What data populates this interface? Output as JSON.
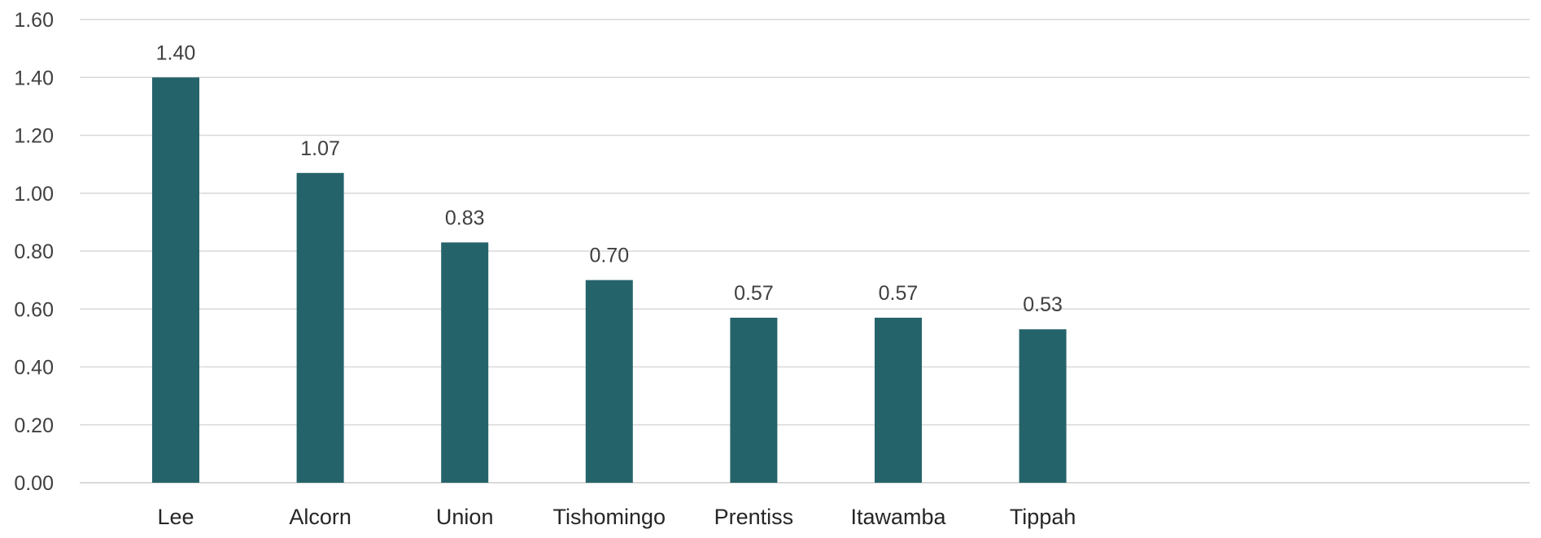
{
  "chart_data": {
    "type": "bar",
    "categories": [
      "Lee",
      "Alcorn",
      "Union",
      "Tishomingo",
      "Prentiss",
      "Itawamba",
      "Tippah"
    ],
    "values": [
      1.4,
      1.07,
      0.83,
      0.7,
      0.57,
      0.57,
      0.53
    ],
    "value_labels": [
      "1.40",
      "1.07",
      "0.83",
      "0.70",
      "0.57",
      "0.57",
      "0.53"
    ],
    "y_ticks": [
      "0.00",
      "0.20",
      "0.40",
      "0.60",
      "0.80",
      "1.00",
      "1.20",
      "1.40",
      "1.60"
    ],
    "ylim": [
      0,
      1.6
    ],
    "title": "",
    "xlabel": "",
    "ylabel": "",
    "grid": true,
    "legend": "none",
    "colors": {
      "bar": "#25636A",
      "grid": "#D9D9D9",
      "axis": "#D9D9D9"
    }
  }
}
